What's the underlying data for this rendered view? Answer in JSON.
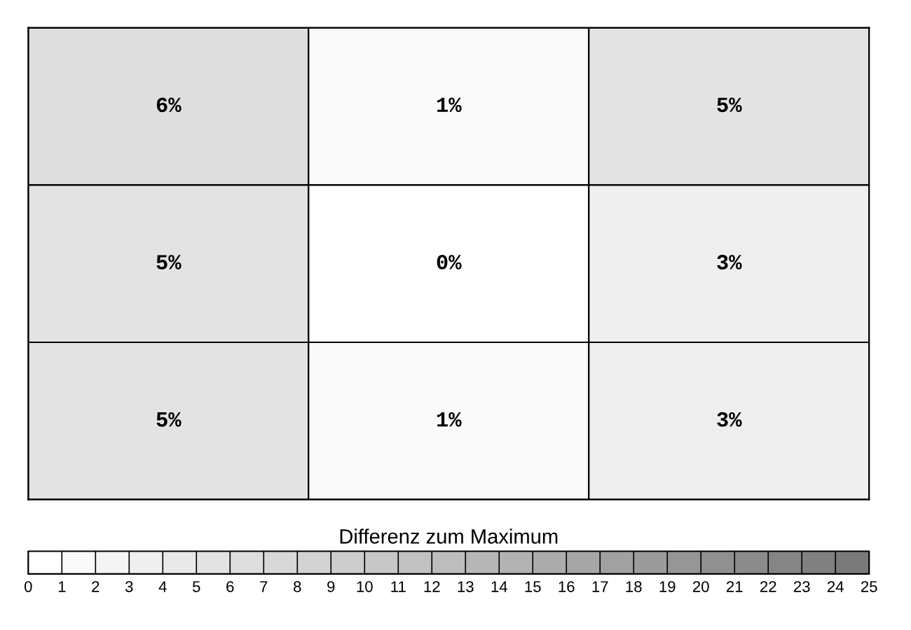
{
  "chart_data": {
    "type": "heatmap",
    "categories": [
      null,
      null,
      null
    ],
    "y_categories": [
      null,
      null,
      null
    ],
    "cells": [
      [
        6,
        1,
        5
      ],
      [
        5,
        0,
        3
      ],
      [
        5,
        1,
        3
      ]
    ],
    "cell_labels": [
      [
        "6%",
        "1%",
        "5%"
      ],
      [
        "5%",
        "0%",
        "3%"
      ],
      [
        "5%",
        "1%",
        "3%"
      ]
    ],
    "clabel": "Differenz zum Maximum",
    "clim": [
      0,
      25
    ],
    "cticks": [
      0,
      1,
      2,
      3,
      4,
      5,
      6,
      7,
      8,
      9,
      10,
      11,
      12,
      13,
      14,
      15,
      16,
      17,
      18,
      19,
      20,
      21,
      22,
      23,
      24,
      25
    ]
  }
}
